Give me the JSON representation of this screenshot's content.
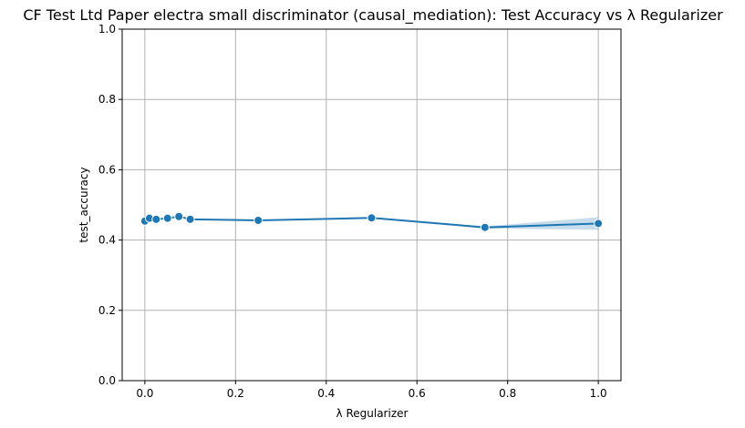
{
  "chart_data": {
    "type": "line",
    "title": "CF Test Ltd Paper electra small discriminator (causal_mediation): Test Accuracy vs λ Regularizer",
    "xlabel": "λ Regularizer",
    "ylabel": "test_accuracy",
    "xlim": [
      -0.05,
      1.05
    ],
    "ylim": [
      0.0,
      1.0
    ],
    "xticks": [
      0.0,
      0.2,
      0.4,
      0.6,
      0.8,
      1.0
    ],
    "xtick_labels": [
      "0.0",
      "0.2",
      "0.4",
      "0.6",
      "0.8",
      "1.0"
    ],
    "yticks": [
      0.0,
      0.2,
      0.4,
      0.6,
      0.8,
      1.0
    ],
    "ytick_labels": [
      "0.0",
      "0.2",
      "0.4",
      "0.6",
      "0.8",
      "1.0"
    ],
    "grid": true,
    "series": [
      {
        "x": [
          0.0,
          0.01,
          0.025,
          0.05,
          0.075,
          0.1,
          0.25,
          0.5,
          0.75,
          1.0
        ],
        "y": [
          0.454,
          0.462,
          0.459,
          0.462,
          0.467,
          0.459,
          0.456,
          0.463,
          0.436,
          0.447
        ],
        "ci_low": [
          0.452,
          0.46,
          0.457,
          0.46,
          0.464,
          0.457,
          0.454,
          0.461,
          0.433,
          0.429
        ],
        "ci_high": [
          0.456,
          0.464,
          0.461,
          0.464,
          0.47,
          0.461,
          0.458,
          0.465,
          0.439,
          0.465
        ],
        "color": "#1f77b4"
      }
    ]
  }
}
